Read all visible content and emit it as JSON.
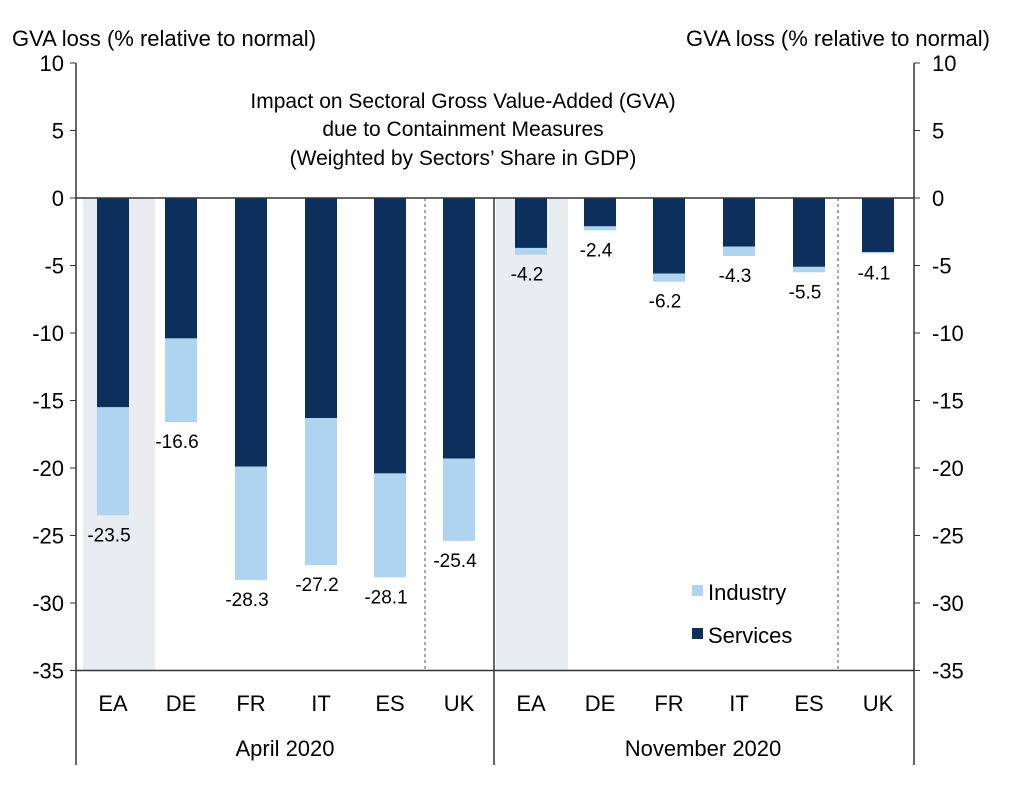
{
  "chart_data": {
    "type": "bar",
    "stacked": true,
    "title_lines": [
      "Impact on Sectoral Gross Value-Added (GVA)",
      "due to Containment Measures",
      "(Weighted by Sectors’ Share in GDP)"
    ],
    "ylabel_left": "GVA loss (% relative to normal)",
    "ylabel_right": "GVA loss (% relative to normal)",
    "ylim": [
      -35,
      10
    ],
    "yticks": [
      10,
      5,
      0,
      -5,
      -10,
      -15,
      -20,
      -25,
      -30,
      -35
    ],
    "legend_position": "bottom-right",
    "colors": {
      "Industry": "#aed4f0",
      "Services": "#0c2f5b",
      "highlight": "#e9edf2"
    },
    "groups": [
      {
        "label": "April 2020",
        "categories": [
          "EA",
          "DE",
          "FR",
          "IT",
          "ES",
          "UK"
        ],
        "services": [
          -15.5,
          -10.4,
          -19.9,
          -16.3,
          -20.4,
          -19.3
        ],
        "industry": [
          -8.0,
          -6.2,
          -8.4,
          -10.9,
          -7.7,
          -6.1
        ],
        "totals": [
          "-23.5",
          "-16.6",
          "-28.3",
          "-27.2",
          "-28.1",
          "-25.4"
        ]
      },
      {
        "label": "November 2020",
        "categories": [
          "EA",
          "DE",
          "FR",
          "IT",
          "ES",
          "UK"
        ],
        "services": [
          -3.7,
          -2.1,
          -5.6,
          -3.6,
          -5.1,
          -4.0
        ],
        "industry": [
          -0.5,
          -0.3,
          -0.6,
          -0.7,
          -0.4,
          -0.1
        ],
        "totals": [
          "-4.2",
          "-2.4",
          "-6.2",
          "-4.3",
          "-5.5",
          "-4.1"
        ]
      }
    ],
    "series": [
      {
        "name": "Industry"
      },
      {
        "name": "Services"
      }
    ]
  }
}
